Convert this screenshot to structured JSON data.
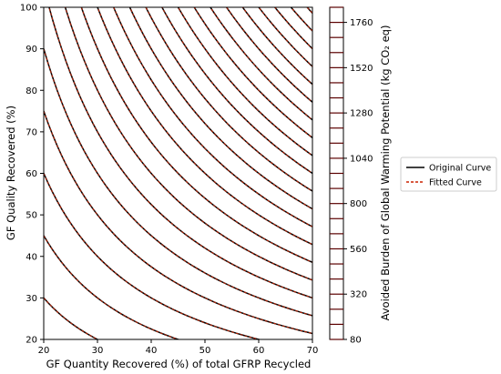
{
  "chart_data": {
    "type": "line",
    "chart_kind": "contour",
    "x_axis": {
      "label": "GF Quantity Recovered (%) of total GFRP Recycled",
      "range": [
        20,
        70
      ],
      "ticks": [
        20,
        30,
        40,
        50,
        60,
        70
      ]
    },
    "y_axis": {
      "label": "GF Quality Recovered (%)",
      "range": [
        20,
        100
      ],
      "ticks": [
        20,
        30,
        40,
        50,
        60,
        70,
        80,
        90,
        100
      ]
    },
    "colorbar": {
      "label": "Avoided Burden of Global Warming Potential (kg CO₂ eq)",
      "range": [
        80,
        1840
      ],
      "ticks": [
        80,
        320,
        560,
        800,
        1040,
        1280,
        1520,
        1760
      ],
      "levels": [
        80,
        160,
        240,
        320,
        400,
        480,
        560,
        640,
        720,
        800,
        880,
        960,
        1040,
        1120,
        1200,
        1280,
        1360,
        1440,
        1520,
        1600,
        1680,
        1760,
        1840
      ],
      "line_color": "#5a0000"
    },
    "contour_model": {
      "form": "value = k * quantity * quality",
      "k": 0.3333
    },
    "contour_levels": [
      200,
      300,
      400,
      500,
      600,
      700,
      800,
      900,
      1000,
      1100,
      1200,
      1300,
      1400,
      1500,
      1600,
      1700,
      1800,
      1900,
      2000,
      2100,
      2200,
      2300
    ],
    "legend": {
      "placement": "right",
      "entries": [
        {
          "label": "Original Curve",
          "color": "#000000",
          "style": "solid"
        },
        {
          "label": "Fitted Curve",
          "color": "#cc2200",
          "style": "dashed"
        }
      ]
    },
    "grid": false
  }
}
